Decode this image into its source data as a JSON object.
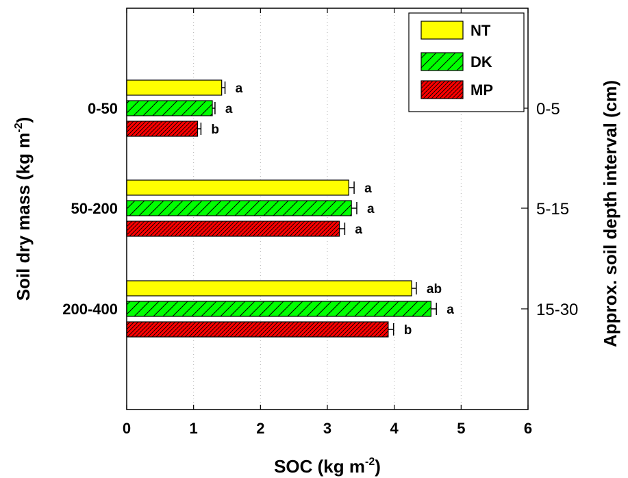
{
  "chart_data": {
    "type": "bar",
    "orientation": "horizontal",
    "xlabel": "SOC (kg m",
    "xlabel_sup": "-2",
    "xlabel_suffix": ")",
    "ylabel_left": "Soil dry mass (kg m",
    "ylabel_left_sup": "-2",
    "ylabel_left_suffix": ")",
    "ylabel_right": "Approx. soil depth interval (cm)",
    "xlim": [
      0,
      6
    ],
    "xticks": [
      "0",
      "1",
      "2",
      "3",
      "4",
      "5",
      "6"
    ],
    "grid": "vertical dotted",
    "legend_position": "top-right",
    "categories": [
      "0-50",
      "50-200",
      "200-400"
    ],
    "right_categories": [
      "0-5",
      "5-15",
      "15-30"
    ],
    "series": [
      {
        "name": "NT",
        "color": "#ffff00",
        "hatch": false,
        "values": [
          1.42,
          3.32,
          4.26
        ],
        "errors": [
          0.05,
          0.08,
          0.07
        ],
        "letters": [
          "a",
          "a",
          "ab"
        ]
      },
      {
        "name": "DK",
        "color": "#00ff00",
        "hatch": true,
        "values": [
          1.28,
          3.36,
          4.55
        ],
        "errors": [
          0.04,
          0.08,
          0.08
        ],
        "letters": [
          "a",
          "a",
          "a"
        ]
      },
      {
        "name": "MP",
        "color": "#ff0000",
        "hatch": true,
        "values": [
          1.06,
          3.18,
          3.91
        ],
        "errors": [
          0.05,
          0.08,
          0.08
        ],
        "letters": [
          "b",
          "a",
          "b"
        ]
      }
    ]
  }
}
